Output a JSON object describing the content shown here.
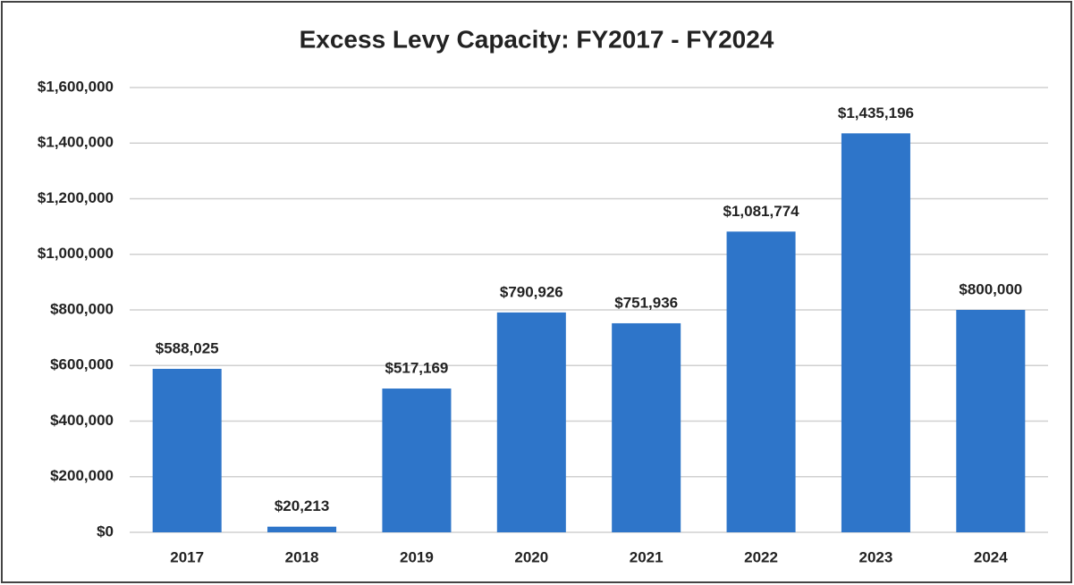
{
  "chart_data": {
    "type": "bar",
    "title": "Excess Levy Capacity: FY2017 - FY2024",
    "categories": [
      "2017",
      "2018",
      "2019",
      "2020",
      "2021",
      "2022",
      "2023",
      "2024"
    ],
    "values": [
      588025,
      20213,
      517169,
      790926,
      751936,
      1081774,
      1435196,
      800000
    ],
    "value_labels": [
      "$588,025",
      "$20,213",
      "$517,169",
      "$790,926",
      "$751,936",
      "$1,081,774",
      "$1,435,196",
      "$800,000"
    ],
    "color": "#2e75c9",
    "ylim": [
      0,
      1600000
    ],
    "yticks": [
      {
        "value": 0,
        "label": "$0"
      },
      {
        "value": 200000,
        "label": "$200,000"
      },
      {
        "value": 400000,
        "label": "$400,000"
      },
      {
        "value": 600000,
        "label": "$600,000"
      },
      {
        "value": 800000,
        "label": "$800,000"
      },
      {
        "value": 1000000,
        "label": "$1,000,000"
      },
      {
        "value": 1200000,
        "label": "$1,200,000"
      },
      {
        "value": 1400000,
        "label": "$1,400,000"
      },
      {
        "value": 1600000,
        "label": "$1,600,000"
      }
    ],
    "grid": true
  }
}
